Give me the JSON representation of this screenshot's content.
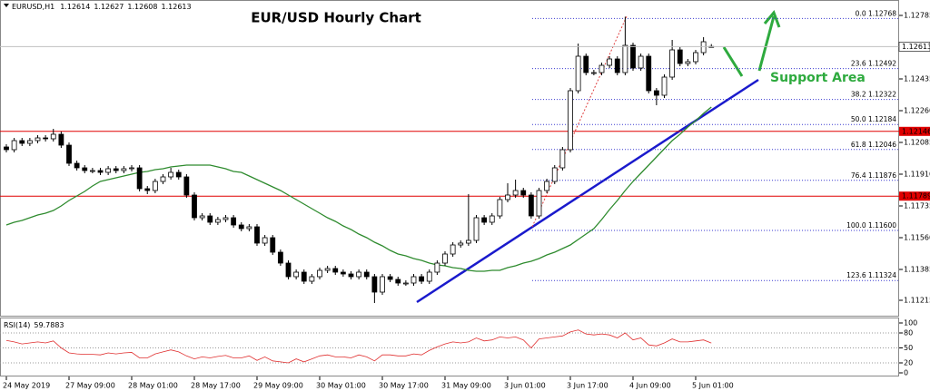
{
  "chart_data": {
    "type": "candlestick",
    "title": "EUR/USD Hourly Chart",
    "symbol": "EURUSD,H1",
    "annotation": "Support Area",
    "up_color": "#ffffff",
    "down_color": "#000000",
    "categories": [
      "24 May 2019",
      null,
      null,
      null,
      null,
      null,
      null,
      null,
      "27 May 09:00",
      null,
      null,
      null,
      null,
      null,
      null,
      null,
      "28 May 01:00",
      null,
      null,
      null,
      null,
      null,
      null,
      null,
      "28 May 17:00",
      null,
      null,
      null,
      null,
      null,
      null,
      null,
      "29 May 09:00",
      null,
      null,
      null,
      null,
      null,
      null,
      null,
      "30 May 01:00",
      null,
      null,
      null,
      null,
      null,
      null,
      null,
      "30 May 17:00",
      null,
      null,
      null,
      null,
      null,
      null,
      null,
      "31 May 09:00",
      null,
      null,
      null,
      null,
      null,
      null,
      null,
      "3 Jun 01:00",
      null,
      null,
      null,
      null,
      null,
      null,
      null,
      "3 Jun 17:00",
      null,
      null,
      null,
      null,
      null,
      null,
      null,
      "4 Jun 09:00",
      null,
      null,
      null,
      null,
      null,
      null,
      null,
      "5 Jun 01:00",
      null,
      null
    ],
    "open": [
      1.1206,
      1.12045,
      1.12095,
      1.1208,
      1.12095,
      1.1211,
      1.12105,
      1.1213,
      1.1207,
      1.1197,
      1.11945,
      1.1193,
      1.1193,
      1.1192,
      1.1194,
      1.1193,
      1.1194,
      1.11945,
      1.1183,
      1.1182,
      1.1187,
      1.11895,
      1.1192,
      1.11895,
      1.11795,
      1.1167,
      1.1168,
      1.11645,
      1.1166,
      1.1167,
      1.1163,
      1.1161,
      1.1162,
      1.1153,
      1.1156,
      1.1148,
      1.1142,
      1.11345,
      1.1137,
      1.1132,
      1.11345,
      1.1138,
      1.1139,
      1.1137,
      1.1136,
      1.11345,
      1.1137,
      1.11345,
      1.1126,
      1.11345,
      1.1133,
      1.1131,
      1.1131,
      1.11345,
      1.1132,
      1.1137,
      1.1142,
      1.1147,
      1.1152,
      1.1153,
      1.11545,
      1.1167,
      1.11645,
      1.1168,
      1.1177,
      1.11795,
      1.1182,
      1.11795,
      1.1168,
      1.1182,
      1.1187,
      1.11945,
      1.12045,
      1.1237,
      1.1256,
      1.1247,
      1.1247,
      1.1251,
      1.12545,
      1.1247,
      1.1262,
      1.12495,
      1.1256,
      1.1237,
      1.12345,
      1.12445,
      1.12595,
      1.1252,
      1.1253,
      1.1258,
      1.12614
    ],
    "high": [
      1.12075,
      1.1211,
      1.1211,
      1.1211,
      1.12125,
      1.12125,
      1.1216,
      1.12145,
      1.12085,
      1.11985,
      1.1196,
      1.11945,
      1.11945,
      1.11955,
      1.11955,
      1.11955,
      1.1196,
      1.1196,
      1.11845,
      1.11885,
      1.1191,
      1.11945,
      1.11935,
      1.1191,
      1.1181,
      1.11695,
      1.11695,
      1.11675,
      1.11685,
      1.11685,
      1.11645,
      1.11635,
      1.11635,
      1.11575,
      1.11575,
      1.11495,
      1.11435,
      1.11385,
      1.11385,
      1.1136,
      1.11395,
      1.11405,
      1.11405,
      1.11385,
      1.11375,
      1.11385,
      1.11385,
      1.1136,
      1.1136,
      1.1136,
      1.11345,
      1.11325,
      1.1136,
      1.1136,
      1.11385,
      1.11435,
      1.11485,
      1.11535,
      1.11545,
      1.118,
      1.11685,
      1.11685,
      1.11695,
      1.11785,
      1.1186,
      1.1188,
      1.11835,
      1.1181,
      1.11835,
      1.11885,
      1.1196,
      1.1206,
      1.12385,
      1.1263,
      1.12575,
      1.12485,
      1.12525,
      1.1256,
      1.1256,
      1.12778,
      1.12635,
      1.12575,
      1.12575,
      1.12385,
      1.1246,
      1.1265,
      1.1261,
      1.12545,
      1.12595,
      1.12665,
      1.12627
    ],
    "low": [
      1.1203,
      1.1203,
      1.12065,
      1.12065,
      1.1208,
      1.1209,
      1.1209,
      1.12055,
      1.11955,
      1.1193,
      1.11915,
      1.11915,
      1.11905,
      1.11905,
      1.11915,
      1.11915,
      1.11925,
      1.11815,
      1.118,
      1.11805,
      1.11855,
      1.1188,
      1.1188,
      1.1178,
      1.11655,
      1.11655,
      1.1163,
      1.1163,
      1.11645,
      1.11615,
      1.11595,
      1.11595,
      1.11515,
      1.11515,
      1.11465,
      1.11405,
      1.1133,
      1.1133,
      1.11305,
      1.11305,
      1.1133,
      1.11365,
      1.11355,
      1.11345,
      1.1133,
      1.1133,
      1.1133,
      1.112,
      1.11245,
      1.11315,
      1.11295,
      1.11295,
      1.11295,
      1.11305,
      1.11305,
      1.11355,
      1.11405,
      1.11455,
      1.11505,
      1.11515,
      1.1153,
      1.1163,
      1.1163,
      1.11665,
      1.11755,
      1.1178,
      1.1178,
      1.11665,
      1.11665,
      1.11805,
      1.11855,
      1.1193,
      1.1203,
      1.12355,
      1.12455,
      1.12455,
      1.12455,
      1.12495,
      1.12455,
      1.12455,
      1.1248,
      1.1248,
      1.12355,
      1.1229,
      1.1233,
      1.1243,
      1.12505,
      1.12505,
      1.12515,
      1.12565,
      1.12608
    ],
    "close": [
      1.12045,
      1.12095,
      1.1208,
      1.12095,
      1.1211,
      1.12105,
      1.1213,
      1.1207,
      1.1197,
      1.11945,
      1.1193,
      1.1193,
      1.1192,
      1.1194,
      1.1193,
      1.1194,
      1.11945,
      1.1183,
      1.1182,
      1.1187,
      1.11895,
      1.1192,
      1.11895,
      1.11795,
      1.1167,
      1.1168,
      1.11645,
      1.1166,
      1.1167,
      1.1163,
      1.1161,
      1.1162,
      1.1153,
      1.1156,
      1.1148,
      1.1142,
      1.11345,
      1.1137,
      1.1132,
      1.11345,
      1.1138,
      1.1139,
      1.1137,
      1.1136,
      1.11345,
      1.1137,
      1.11345,
      1.1126,
      1.11345,
      1.1133,
      1.1131,
      1.1131,
      1.11345,
      1.1132,
      1.1137,
      1.1142,
      1.1147,
      1.1152,
      1.1153,
      1.11545,
      1.1167,
      1.11645,
      1.1168,
      1.1177,
      1.11795,
      1.1182,
      1.11795,
      1.1168,
      1.1182,
      1.1187,
      1.11945,
      1.12045,
      1.1237,
      1.1256,
      1.1247,
      1.1247,
      1.1251,
      1.12545,
      1.1247,
      1.1262,
      1.12495,
      1.1256,
      1.1237,
      1.12345,
      1.12445,
      1.12595,
      1.1252,
      1.1253,
      1.1258,
      1.1264,
      1.12613
    ],
    "moving_average": {
      "color": "#2e8b2e",
      "values": [
        1.1163,
        1.11645,
        1.11655,
        1.1167,
        1.11685,
        1.11695,
        1.1171,
        1.11735,
        1.11765,
        1.1179,
        1.11815,
        1.11845,
        1.1187,
        1.1188,
        1.1189,
        1.119,
        1.1191,
        1.1192,
        1.11925,
        1.11935,
        1.1194,
        1.1195,
        1.11955,
        1.1196,
        1.1196,
        1.1196,
        1.1196,
        1.1195,
        1.1194,
        1.11925,
        1.1192,
        1.119,
        1.1188,
        1.1186,
        1.1184,
        1.1182,
        1.11795,
        1.1177,
        1.11745,
        1.1172,
        1.11695,
        1.1167,
        1.1165,
        1.11625,
        1.11605,
        1.1158,
        1.1156,
        1.11535,
        1.11515,
        1.1149,
        1.1147,
        1.1146,
        1.11445,
        1.11435,
        1.1142,
        1.1141,
        1.11405,
        1.11395,
        1.1139,
        1.1138,
        1.11375,
        1.11375,
        1.1138,
        1.1138,
        1.11395,
        1.11405,
        1.1142,
        1.1143,
        1.11445,
        1.11465,
        1.1148,
        1.115,
        1.1152,
        1.1155,
        1.1158,
        1.1161,
        1.1166,
        1.11715,
        1.11765,
        1.1182,
        1.1187,
        1.11915,
        1.1196,
        1.12005,
        1.1205,
        1.12095,
        1.1213,
        1.1217,
        1.12205,
        1.12245,
        1.1228
      ]
    },
    "ylim": [
      1.1113,
      1.1287
    ],
    "yticks": [
      1.12785,
      1.12435,
      {
        "value": 1.1226,
        "label": "1.12260"
      },
      1.12085,
      {
        "value": 1.1191,
        "label": "1.11910"
      },
      1.11735,
      {
        "value": 1.1156,
        "label": "1.11560"
      },
      1.11385,
      1.11215
    ],
    "level_color": "#e00000",
    "levels": [
      {
        "value": 1.12146,
        "label": "1.12146"
      },
      {
        "value": 1.11789,
        "label": "1.11789"
      }
    ],
    "fib_color": "#3a3ad0",
    "fib_levels": [
      {
        "value": 1.12768,
        "label": "0.0 1.12768"
      },
      {
        "value": 1.12492,
        "label": "23.6 1.12492"
      },
      {
        "value": 1.12322,
        "label": "38.2 1.12322"
      },
      {
        "value": 1.12184,
        "label": "50.0 1.12184"
      },
      {
        "value": 1.12046,
        "label": "61.8 1.12046"
      },
      {
        "value": 1.11876,
        "label": "76.4 1.11876"
      },
      {
        "value": 1.116,
        "label": "100.0 1.11600"
      },
      {
        "value": 1.11324,
        "label": "123.6 1.11324"
      }
    ],
    "rsi": {
      "title": "RSI(14)",
      "color": "#e03030",
      "ylim": [
        0,
        100
      ],
      "yticks": [
        100,
        80,
        50,
        20,
        0
      ],
      "values": [
        65,
        62,
        58,
        60,
        62,
        60,
        64,
        50,
        40,
        38,
        37,
        37,
        36,
        40,
        38,
        40,
        41,
        30,
        30,
        38,
        42,
        46,
        42,
        34,
        28,
        32,
        30,
        33,
        35,
        30,
        30,
        34,
        25,
        32,
        24,
        22,
        20,
        28,
        22,
        28,
        34,
        36,
        32,
        32,
        30,
        36,
        32,
        24,
        36,
        36,
        34,
        34,
        38,
        36,
        45,
        52,
        58,
        62,
        60,
        62,
        70,
        64,
        66,
        72,
        70,
        72,
        66,
        50,
        68,
        70,
        72,
        74,
        82,
        86,
        78,
        76,
        78,
        76,
        70,
        80,
        66,
        70,
        56,
        54,
        60,
        68,
        62,
        62,
        64,
        66,
        59.7883
      ]
    }
  }
}
